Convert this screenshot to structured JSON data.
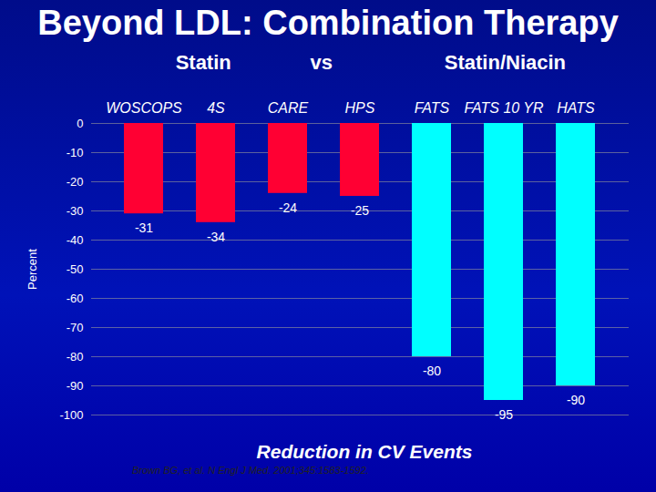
{
  "chart_data": {
    "type": "bar",
    "title": "Beyond LDL: Combination Therapy",
    "annotations": [
      "Statin",
      "vs",
      "Statin/Niacin"
    ],
    "categories": [
      "WOSCOPS",
      "4S",
      "CARE",
      "HPS",
      "FATS",
      "FATS 10 YR",
      "HATS"
    ],
    "values": [
      -31,
      -34,
      -24,
      -25,
      -80,
      -95,
      -90
    ],
    "colors": [
      "#ff0033",
      "#ff0033",
      "#ff0033",
      "#ff0033",
      "#00ffff",
      "#00ffff",
      "#00ffff"
    ],
    "ylabel": "Percent",
    "xlabel": "Reduction in CV Events",
    "source": "Brown BG, et al. N Engl J Med. 2001;345:1583-1592.",
    "ylim": [
      -100,
      0
    ],
    "yticks": [
      0,
      -10,
      -20,
      -30,
      -40,
      -50,
      -60,
      -70,
      -80,
      -90,
      -100
    ],
    "grid": true,
    "data_labels": true
  }
}
